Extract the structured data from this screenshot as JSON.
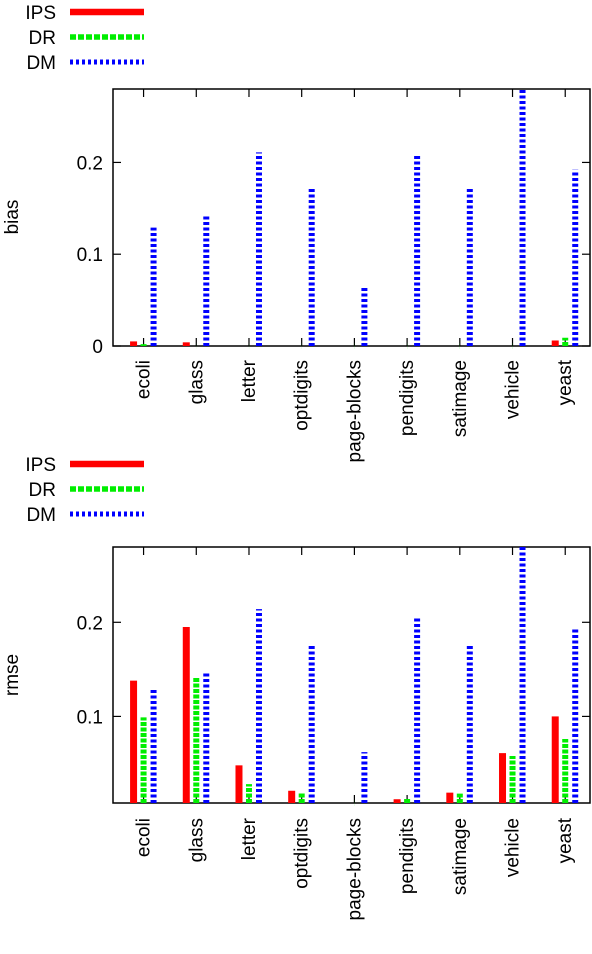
{
  "chart_data": [
    {
      "type": "bar",
      "ylabel": "bias",
      "ylim": [
        0,
        0.28
      ],
      "yticks": [
        {
          "v": 0,
          "label": "0"
        },
        {
          "v": 0.1,
          "label": "0.1"
        },
        {
          "v": 0.2,
          "label": "0.2"
        }
      ],
      "legend_position": "top-left",
      "categories": [
        "ecoli",
        "glass",
        "letter",
        "optdigits",
        "page-blocks",
        "pendigits",
        "satimage",
        "vehicle",
        "yeast"
      ],
      "series": [
        {
          "name": "IPS",
          "color": "#ff0000",
          "values": [
            0.005,
            0.004,
            0.0,
            0.0,
            0.0,
            0.0,
            0.0,
            0.0,
            0.006
          ]
        },
        {
          "name": "DR",
          "color": "#00ee00",
          "values": [
            0.002,
            0.0,
            0.0,
            0.0,
            0.0,
            0.0,
            0.0,
            0.0,
            0.009
          ]
        },
        {
          "name": "DM",
          "color": "#0000ff",
          "values": [
            0.129,
            0.143,
            0.211,
            0.172,
            0.064,
            0.208,
            0.172,
            0.28,
            0.192
          ]
        }
      ]
    },
    {
      "type": "bar",
      "ylabel": "rmse",
      "ylim": [
        0.008,
        0.28
      ],
      "yticks": [
        {
          "v": 0.1,
          "label": "0.1"
        },
        {
          "v": 0.2,
          "label": "0.2"
        }
      ],
      "legend_position": "top-left",
      "categories": [
        "ecoli",
        "glass",
        "letter",
        "optdigits",
        "page-blocks",
        "pendigits",
        "satimage",
        "vehicle",
        "yeast"
      ],
      "series": [
        {
          "name": "IPS",
          "color": "#ff0000",
          "values": [
            0.138,
            0.195,
            0.048,
            0.021,
            0.008,
            0.012,
            0.019,
            0.061,
            0.1
          ]
        },
        {
          "name": "DR",
          "color": "#00ee00",
          "values": [
            0.099,
            0.142,
            0.028,
            0.019,
            0.008,
            0.013,
            0.018,
            0.058,
            0.076
          ]
        },
        {
          "name": "DM",
          "color": "#0000ff",
          "values": [
            0.129,
            0.148,
            0.214,
            0.176,
            0.062,
            0.205,
            0.175,
            0.28,
            0.193
          ]
        }
      ]
    }
  ]
}
